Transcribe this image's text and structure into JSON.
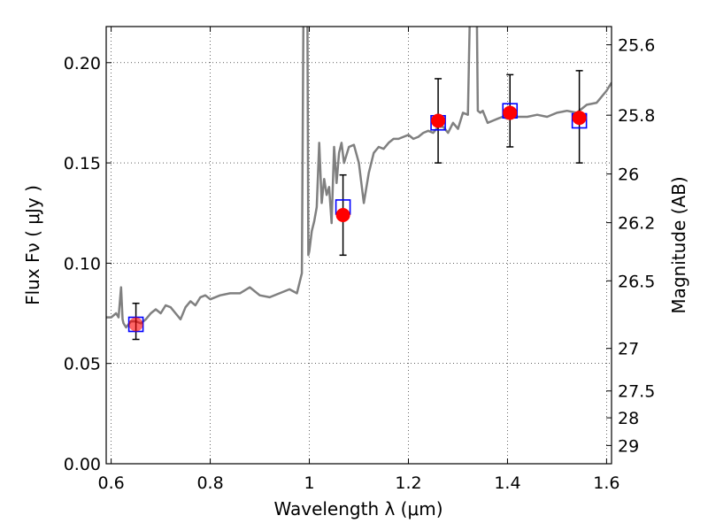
{
  "chart_data": {
    "type": "scatter",
    "xlabel": "Wavelength  λ (μm)",
    "ylabel": "Flux  Fν  ( μJy )",
    "y2label": "Magnitude (AB)",
    "xlim": [
      0.59,
      1.61
    ],
    "ylim": [
      0.0,
      0.218
    ],
    "grid": true,
    "x_ticks": [
      0.6,
      0.8,
      1.0,
      1.2,
      1.4,
      1.6
    ],
    "x_tick_labels": [
      "0.6",
      "0.8",
      "1",
      "1.2",
      "1.4",
      "1.6"
    ],
    "y_ticks": [
      0.0,
      0.05,
      0.1,
      0.15,
      0.2
    ],
    "y_tick_labels": [
      "0.00",
      "0.05",
      "0.10",
      "0.15",
      "0.20"
    ],
    "y2_ticks": [
      {
        "flux": 0.2089,
        "label": "25.6"
      },
      {
        "flux": 0.1738,
        "label": "25.8"
      },
      {
        "flux": 0.1445,
        "label": "26"
      },
      {
        "flux": 0.1202,
        "label": "26.2"
      },
      {
        "flux": 0.0912,
        "label": "26.5"
      },
      {
        "flux": 0.0575,
        "label": "27"
      },
      {
        "flux": 0.0363,
        "label": "27.5"
      },
      {
        "flux": 0.0229,
        "label": "28"
      },
      {
        "flux": 0.0091,
        "label": "29"
      }
    ],
    "series": [
      {
        "name": "model SED",
        "kind": "line",
        "color": "#808080",
        "x": [
          0.59,
          0.6,
          0.61,
          0.615,
          0.62,
          0.623,
          0.625,
          0.63,
          0.64,
          0.65,
          0.66,
          0.67,
          0.68,
          0.69,
          0.7,
          0.71,
          0.72,
          0.73,
          0.74,
          0.75,
          0.76,
          0.77,
          0.78,
          0.79,
          0.8,
          0.82,
          0.84,
          0.86,
          0.88,
          0.9,
          0.92,
          0.94,
          0.96,
          0.975,
          0.985,
          0.99,
          0.995,
          0.998,
          1.0,
          1.005,
          1.01,
          1.015,
          1.02,
          1.025,
          1.03,
          1.035,
          1.04,
          1.045,
          1.05,
          1.055,
          1.06,
          1.065,
          1.07,
          1.08,
          1.09,
          1.1,
          1.11,
          1.12,
          1.13,
          1.14,
          1.15,
          1.16,
          1.17,
          1.18,
          1.19,
          1.2,
          1.21,
          1.22,
          1.23,
          1.24,
          1.25,
          1.26,
          1.27,
          1.28,
          1.29,
          1.3,
          1.31,
          1.32,
          1.33,
          1.335,
          1.34,
          1.345,
          1.35,
          1.36,
          1.37,
          1.38,
          1.39,
          1.4,
          1.42,
          1.44,
          1.46,
          1.48,
          1.5,
          1.52,
          1.54,
          1.56,
          1.58,
          1.6,
          1.61
        ],
        "y": [
          0.073,
          0.073,
          0.075,
          0.073,
          0.088,
          0.072,
          0.07,
          0.068,
          0.071,
          0.071,
          0.07,
          0.072,
          0.075,
          0.077,
          0.075,
          0.079,
          0.078,
          0.075,
          0.072,
          0.078,
          0.081,
          0.079,
          0.083,
          0.084,
          0.082,
          0.084,
          0.085,
          0.085,
          0.088,
          0.084,
          0.083,
          0.085,
          0.087,
          0.085,
          0.095,
          0.3,
          0.3,
          0.104,
          0.106,
          0.116,
          0.121,
          0.128,
          0.16,
          0.13,
          0.142,
          0.134,
          0.138,
          0.12,
          0.158,
          0.14,
          0.155,
          0.16,
          0.15,
          0.158,
          0.159,
          0.15,
          0.13,
          0.145,
          0.155,
          0.158,
          0.157,
          0.16,
          0.162,
          0.162,
          0.163,
          0.164,
          0.162,
          0.163,
          0.165,
          0.166,
          0.165,
          0.168,
          0.168,
          0.165,
          0.17,
          0.167,
          0.175,
          0.174,
          0.3,
          0.3,
          0.176,
          0.175,
          0.176,
          0.17,
          0.171,
          0.172,
          0.173,
          0.172,
          0.173,
          0.173,
          0.174,
          0.173,
          0.175,
          0.176,
          0.175,
          0.179,
          0.18,
          0.186,
          0.19
        ]
      },
      {
        "name": "observed photometry",
        "kind": "points_with_errors",
        "color": "#ff0000",
        "x": [
          0.65,
          1.068,
          1.26,
          1.405,
          1.545
        ],
        "y": [
          0.0695,
          0.124,
          0.171,
          0.175,
          0.1725
        ],
        "yerr_low": [
          0.0075,
          0.02,
          0.021,
          0.017,
          0.0225
        ],
        "yerr_high": [
          0.0105,
          0.02,
          0.021,
          0.019,
          0.0235
        ]
      },
      {
        "name": "model photometry",
        "kind": "open_squares",
        "color": "#0000ff",
        "x": [
          0.65,
          1.068,
          1.26,
          1.405,
          1.545
        ],
        "y": [
          0.0695,
          0.128,
          0.17,
          0.176,
          0.171
        ]
      }
    ]
  }
}
